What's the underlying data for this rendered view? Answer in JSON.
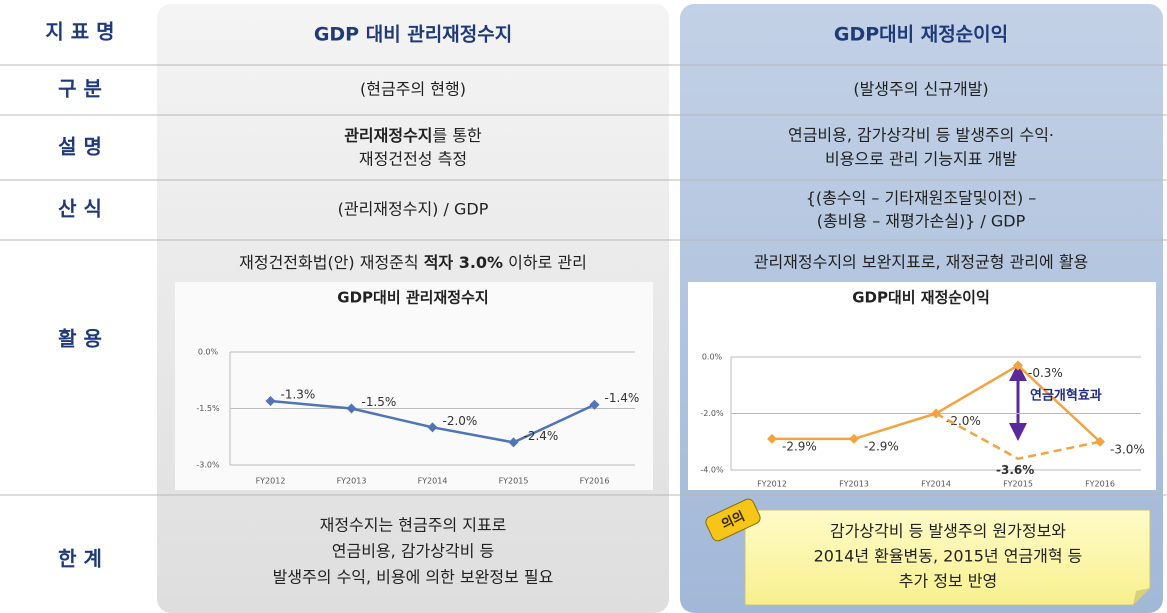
{
  "table": {
    "row_labels": [
      "지 표 명",
      "구 분",
      "설 명",
      "산 식",
      "활 용",
      "한 계"
    ],
    "header": {
      "left": "GDP 대비 관리재정수지",
      "right": "GDP대비 재정순이익"
    },
    "type_row": {
      "left": "(현금주의 현행)",
      "right": "(발생주의 신규개발)"
    },
    "description": {
      "left": {
        "bold": "관리재정수지",
        "rest": "를 통한",
        "line2": "재정건전성 측정"
      },
      "right": [
        "연금비용, 감가상각비 등 발생주의 수익·",
        "비용으로 관리 기능지표 개발"
      ]
    },
    "formula": {
      "left": "(관리재정수지) / GDP",
      "right": [
        "{(총수익 – 기타재원조달및이전) –",
        "(총비용 – 재평가손실)} / GDP"
      ]
    },
    "usage": {
      "left": {
        "before": "재정건전화법(안) 재정준칙 ",
        "bold": "적자 3.0%",
        "after": " 이하로 관리"
      },
      "right": "관리재정수지의 보완지표로, 재정균형 관리에 활용"
    },
    "limits": {
      "left": [
        "재정수지는 현금주의 지표로",
        "연금비용, 감가상각비 등",
        "발생주의 수익, 비용에 의한 보완정보 필요"
      ],
      "badge": "의의",
      "right": [
        "감가상각비 등 발생주의 원가정보와",
        "2014년 환율변동, 2015년 연금개혁 등",
        "추가 정보 반영"
      ]
    }
  },
  "chart_data": [
    {
      "type": "line",
      "title": "GDP대비 관리재정수지",
      "categories": [
        "FY2012",
        "FY2013",
        "FY2014",
        "FY2015",
        "FY2016"
      ],
      "values": [
        -1.3,
        -1.5,
        -2.0,
        -2.4,
        -1.4
      ],
      "value_labels": [
        "-1.3%",
        "-1.5%",
        "-2.0%",
        "-2.4%",
        "-1.4%"
      ],
      "color": "#4f74b8",
      "ylim": [
        -3.0,
        0.0
      ],
      "yticks": [
        {
          "value": 0.0,
          "label": "0.0%"
        },
        {
          "value": -1.5,
          "label": "-1.5%"
        },
        {
          "value": -3.0,
          "label": "-3.0%"
        }
      ],
      "grid": true
    },
    {
      "type": "line",
      "title": "GDP대비 재정순이익",
      "categories": [
        "FY2012",
        "FY2013",
        "FY2014",
        "FY2015",
        "FY2016"
      ],
      "series": [
        {
          "color": "#f4a340",
          "values": [
            -2.9,
            -2.9,
            -2.0,
            -0.3,
            -3.0
          ],
          "value_labels": [
            "-2.9%",
            "-2.9%",
            "-2.0%",
            "-0.3%",
            "-3.0%"
          ]
        },
        {
          "color": "#f4a340",
          "line_style": "dashed",
          "label_color": "#ff0000",
          "values": [
            null,
            null,
            -2.0,
            -3.6,
            -3.0
          ],
          "value_labels": [
            null,
            null,
            null,
            "-3.6%",
            null
          ]
        }
      ],
      "annotation": "연금개혁효과",
      "ylim": [
        -4.0,
        0.0
      ],
      "yticks": [
        {
          "value": 0.0,
          "label": "0.0%"
        },
        {
          "value": -2.0,
          "label": "-2.0%"
        },
        {
          "value": -4.0,
          "label": "-4.0%"
        }
      ],
      "grid": true
    }
  ]
}
